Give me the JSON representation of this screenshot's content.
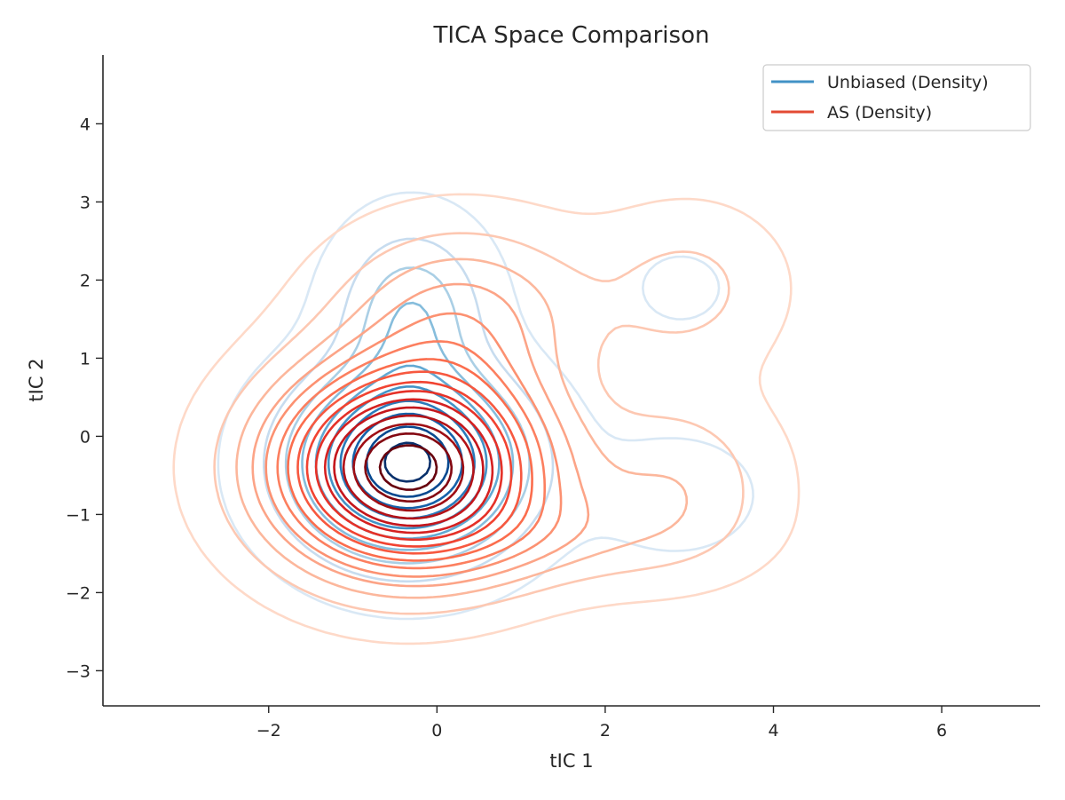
{
  "chart_data": {
    "type": "contour",
    "title": "TICA Space Comparison",
    "xlabel": "tIC 1",
    "ylabel": "tIC 2",
    "xlim": [
      -3.97,
      7.17
    ],
    "ylim": [
      -3.45,
      4.88
    ],
    "xticks": [
      -2,
      0,
      2,
      4,
      6
    ],
    "yticks": [
      -3,
      -2,
      -1,
      0,
      1,
      2,
      3,
      4
    ],
    "grid": false,
    "legend_position": "top-right",
    "series": [
      {
        "name": "Unbiased (Density)",
        "legend_color": "#4292c6",
        "colormap": "Blues",
        "levels": 10,
        "components": [
          {
            "cx": -0.35,
            "cy": -0.35,
            "sx": 0.85,
            "sy": 0.75,
            "weight": 1.0
          },
          {
            "cx": -0.3,
            "cy": 1.6,
            "sx": 0.55,
            "sy": 0.7,
            "weight": 0.32
          },
          {
            "cx": 2.85,
            "cy": -0.75,
            "sx": 0.7,
            "sy": 0.55,
            "weight": 0.07
          },
          {
            "cx": 2.9,
            "cy": 1.9,
            "sx": 0.45,
            "sy": 0.4,
            "weight": 0.05
          }
        ]
      },
      {
        "name": "AS (Density)",
        "legend_color": "#e34a33",
        "colormap": "Reds",
        "levels": 16,
        "components": [
          {
            "cx": -0.35,
            "cy": -0.4,
            "sx": 1.05,
            "sy": 0.85,
            "weight": 1.0
          },
          {
            "cx": 0.3,
            "cy": 1.6,
            "sx": 1.0,
            "sy": 0.75,
            "weight": 0.22
          },
          {
            "cx": 2.9,
            "cy": -0.55,
            "sx": 0.8,
            "sy": 0.75,
            "weight": 0.13
          },
          {
            "cx": 3.0,
            "cy": 1.9,
            "sx": 0.75,
            "sy": 0.7,
            "weight": 0.11
          },
          {
            "cx": 1.5,
            "cy": -1.3,
            "sx": 1.2,
            "sy": 0.45,
            "weight": 0.1
          }
        ]
      }
    ]
  }
}
